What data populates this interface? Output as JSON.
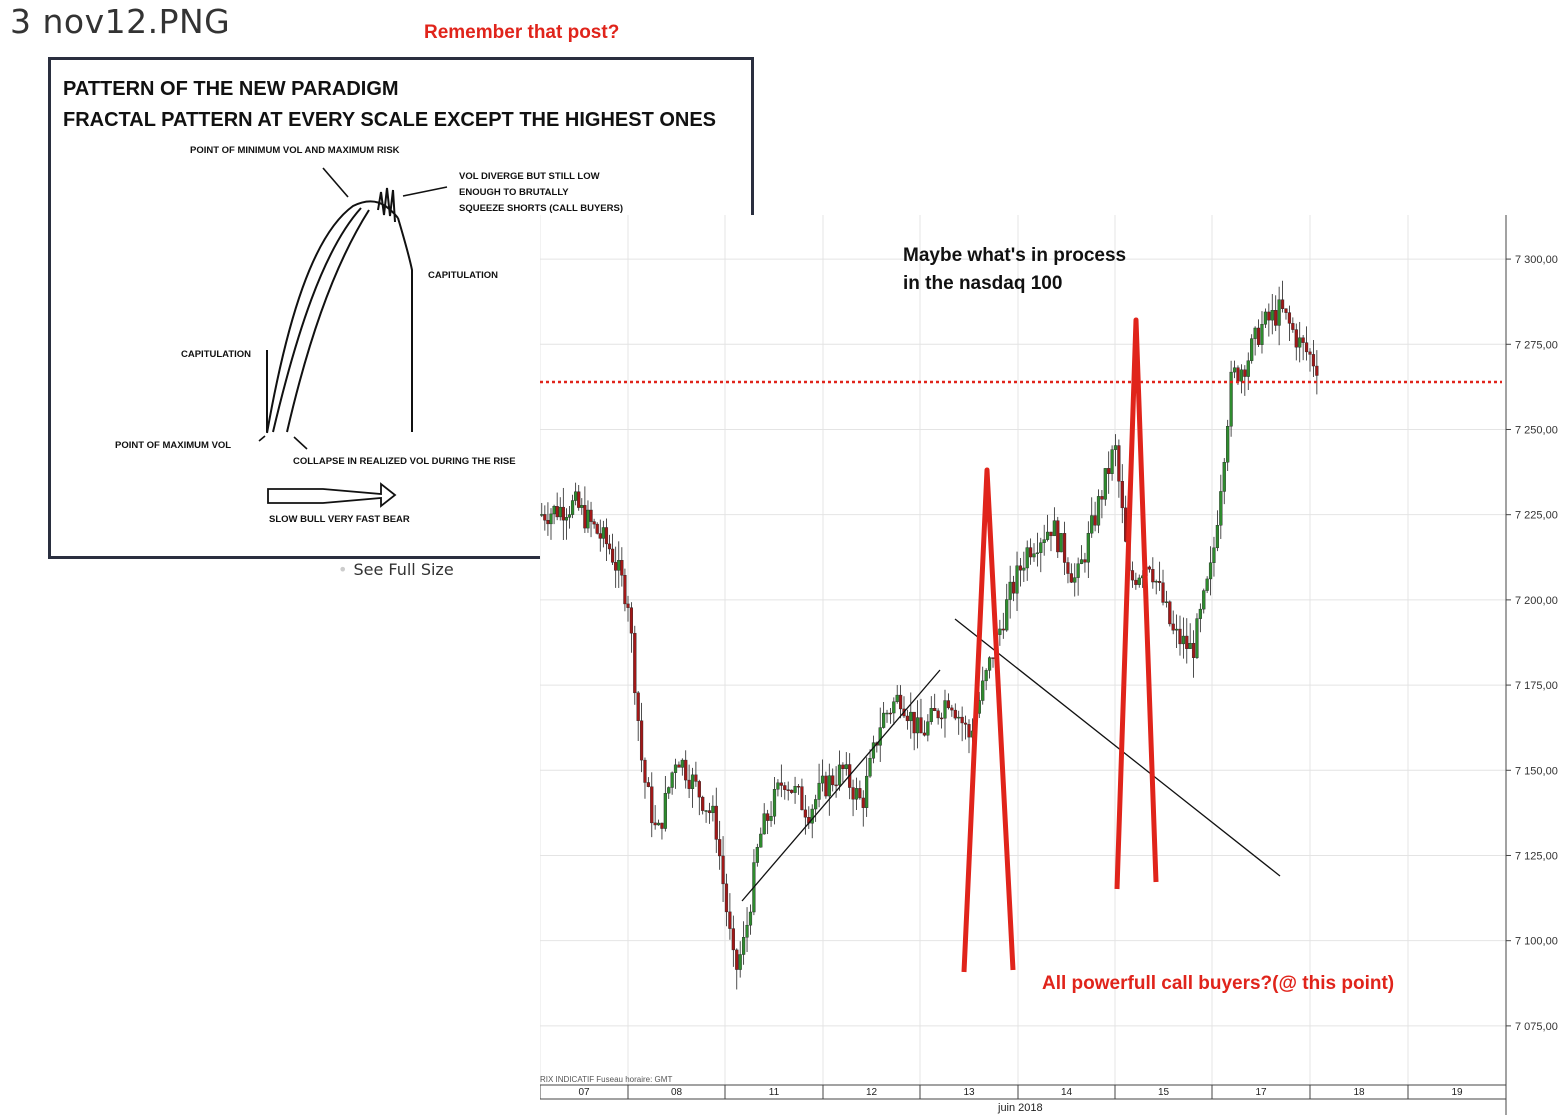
{
  "page": {
    "title": "3 nov12.PNG",
    "remember_note": "Remember that post?",
    "see_full_size": "See Full Size"
  },
  "diagram": {
    "heading_line1": "PATTERN OF THE NEW PARADIGM",
    "heading_line2": "FRACTAL PATTERN AT EVERY SCALE EXCEPT THE HIGHEST ONES",
    "label_min_vol": "POINT OF MINIMUM VOL AND MAXIMUM RISK",
    "label_vol_diverge_1": "VOL DIVERGE BUT STILL LOW",
    "label_vol_diverge_2": "ENOUGH TO BRUTALLY",
    "label_vol_diverge_3": "SQUEEZE SHORTS  (CALL BUYERS)",
    "label_capitulation_right": "CAPITULATION",
    "label_capitulation_left": "CAPITULATION",
    "label_max_vol": "POINT OF MAXIMUM VOL",
    "label_collapse": "COLLAPSE IN REALIZED VOL DURING THE RISE",
    "label_slow_bull": "SLOW BULL VERY FAST BEAR"
  },
  "chart_annotations": {
    "maybe_line1": "Maybe what's in process",
    "maybe_line2": "in the nasdaq 100",
    "call_buyers": "All powerfull call buyers?(@ this point)",
    "footer_note": "RIX INDICATIF   Fuseau horaire: GMT",
    "month_label": "juin 2018"
  },
  "colors": {
    "annotation_red": "#e0241b",
    "candle_up": "#2e8b2e",
    "candle_down": "#a11818",
    "frame": "#2a2f3f"
  },
  "chart_data": {
    "type": "candlestick",
    "instrument": "nasdaq 100",
    "y_tick_labels": [
      "7 075,00",
      "7 100,00",
      "7 125,00",
      "7 150,00",
      "7 175,00",
      "7 200,00",
      "7 225,00",
      "7 250,00",
      "7 275,00",
      "7 300,00"
    ],
    "y_tick_values": [
      7075,
      7100,
      7125,
      7150,
      7175,
      7200,
      7225,
      7250,
      7275,
      7300
    ],
    "x_tick_labels": [
      "07",
      "08",
      "11",
      "12",
      "13",
      "14",
      "15",
      "17",
      "18",
      "19"
    ],
    "ylim": [
      7060,
      7310
    ],
    "red_dotted_level": 7265,
    "grid": true,
    "path_through_closes": [
      [
        0,
        7225
      ],
      [
        0.4,
        7228
      ],
      [
        0.8,
        7215
      ],
      [
        1.0,
        7200
      ],
      [
        1.15,
        7150
      ],
      [
        1.3,
        7130
      ],
      [
        1.5,
        7155
      ],
      [
        1.7,
        7145
      ],
      [
        1.9,
        7135
      ],
      [
        2.1,
        7090
      ],
      [
        2.2,
        7100
      ],
      [
        2.35,
        7130
      ],
      [
        2.6,
        7148
      ],
      [
        2.85,
        7138
      ],
      [
        3.0,
        7145
      ],
      [
        3.2,
        7150
      ],
      [
        3.4,
        7140
      ],
      [
        3.6,
        7165
      ],
      [
        3.8,
        7172
      ],
      [
        4.0,
        7160
      ],
      [
        4.3,
        7172
      ],
      [
        4.5,
        7160
      ],
      [
        4.7,
        7180
      ],
      [
        4.9,
        7200
      ],
      [
        5.1,
        7215
      ],
      [
        5.35,
        7222
      ],
      [
        5.6,
        7205
      ],
      [
        5.8,
        7225
      ],
      [
        6.0,
        7245
      ],
      [
        6.15,
        7205
      ],
      [
        6.35,
        7212
      ],
      [
        6.6,
        7190
      ],
      [
        6.8,
        7185
      ],
      [
        7.0,
        7210
      ],
      [
        7.2,
        7265
      ],
      [
        7.35,
        7270
      ],
      [
        7.5,
        7280
      ],
      [
        7.7,
        7285
      ],
      [
        7.9,
        7275
      ],
      [
        8.1,
        7268
      ]
    ]
  }
}
